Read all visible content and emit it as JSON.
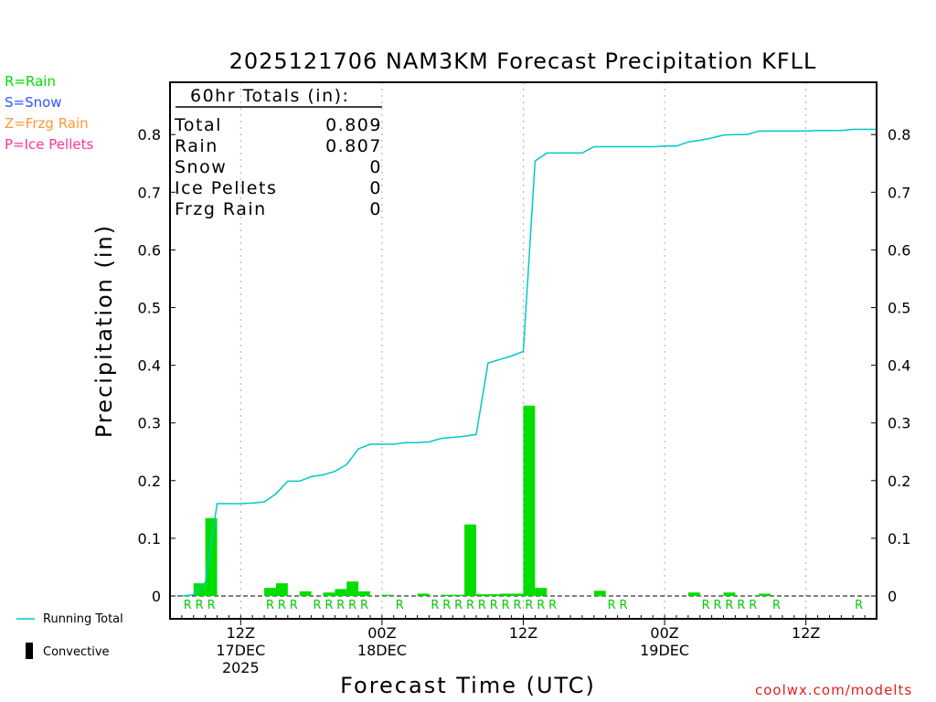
{
  "chart_data": {
    "type": "bar",
    "title": "2025121706 NAM3KM Forecast Precipitation KFLL",
    "xlabel": "Forecast Time (UTC)",
    "ylabel": "Precipitation (in)",
    "ylim": [
      0,
      0.9
    ],
    "yticks": [
      0,
      0.1,
      0.2,
      0.3,
      0.4,
      0.5,
      0.6,
      0.7,
      0.8
    ],
    "x_unit": "forecast hour",
    "xlim": [
      0,
      60
    ],
    "x_ticks": [
      {
        "hour": 6,
        "label": "12Z",
        "sub1": "17DEC",
        "sub2": "2025"
      },
      {
        "hour": 18,
        "label": "00Z",
        "sub1": "18DEC",
        "sub2": ""
      },
      {
        "hour": 30,
        "label": "12Z",
        "sub1": "",
        "sub2": ""
      },
      {
        "hour": 42,
        "label": "00Z",
        "sub1": "19DEC",
        "sub2": ""
      },
      {
        "hour": 54,
        "label": "12Z",
        "sub1": "",
        "sub2": ""
      }
    ],
    "totals": {
      "header": "60hr Totals (in):",
      "rows": [
        {
          "label": "Total",
          "value": "0.809"
        },
        {
          "label": "Rain",
          "value": "0.807"
        },
        {
          "label": "Snow",
          "value": "0"
        },
        {
          "label": "Ice Pellets",
          "value": "0"
        },
        {
          "label": "Frzg Rain",
          "value": "0"
        }
      ]
    },
    "series": [
      {
        "name": "Hourly Precipitation",
        "color": "#00dd00",
        "hours": [
          2,
          3,
          4,
          5,
          6,
          7,
          8,
          9,
          10,
          11,
          12,
          13,
          14,
          15,
          16,
          17,
          18,
          19,
          20,
          21,
          22,
          23,
          24,
          25,
          26,
          27,
          28,
          29,
          30,
          31,
          32,
          33,
          34,
          35,
          36,
          37,
          38,
          39,
          40,
          41,
          42,
          43,
          44,
          45,
          46,
          47,
          48,
          49,
          50,
          51,
          52,
          53,
          54,
          55,
          56,
          57,
          58,
          59,
          60
        ],
        "values": [
          0,
          0.022,
          0.135,
          0,
          0,
          0,
          0,
          0.014,
          0.022,
          0,
          0.008,
          0,
          0.006,
          0.012,
          0.025,
          0.008,
          0,
          0.002,
          0,
          0,
          0.004,
          0,
          0.002,
          0.002,
          0.124,
          0.003,
          0.003,
          0.004,
          0.004,
          0.33,
          0.014,
          0,
          0,
          0,
          0,
          0.009,
          0,
          0,
          0,
          0,
          0,
          0,
          0,
          0.006,
          0,
          0,
          0.006,
          0,
          0,
          0.004,
          0,
          0,
          0,
          0,
          0,
          0,
          0,
          0,
          0
        ]
      },
      {
        "name": "Running Total",
        "color": "#00c8c8",
        "hours": [
          1,
          2,
          3,
          4,
          5,
          6,
          7,
          8,
          9,
          10,
          11,
          12,
          13,
          14,
          15,
          16,
          17,
          18,
          19,
          20,
          21,
          22,
          23,
          24,
          25,
          26,
          27,
          28,
          29,
          30,
          31,
          32,
          33,
          34,
          35,
          36,
          37,
          38,
          39,
          40,
          41,
          42,
          43,
          44,
          45,
          46,
          47,
          48,
          49,
          50,
          51,
          52,
          53,
          54,
          55,
          56,
          57,
          58,
          59,
          60
        ],
        "values": [
          0,
          0.002,
          0.024,
          0.16,
          0.16,
          0.16,
          0.161,
          0.163,
          0.177,
          0.199,
          0.199,
          0.207,
          0.21,
          0.216,
          0.228,
          0.255,
          0.263,
          0.263,
          0.263,
          0.266,
          0.266,
          0.267,
          0.273,
          0.275,
          0.277,
          0.28,
          0.404,
          0.41,
          0.416,
          0.424,
          0.754,
          0.768,
          0.768,
          0.768,
          0.768,
          0.779,
          0.779,
          0.779,
          0.779,
          0.779,
          0.779,
          0.78,
          0.78,
          0.787,
          0.79,
          0.794,
          0.799,
          0.8,
          0.8,
          0.806,
          0.806,
          0.806,
          0.806,
          0.806,
          0.807,
          0.807,
          0.807,
          0.809,
          0.809,
          0.809
        ]
      }
    ],
    "precip_type_labels": [
      {
        "hour": 2,
        "type": "R"
      },
      {
        "hour": 3,
        "type": "R"
      },
      {
        "hour": 4,
        "type": "R"
      },
      {
        "hour": 9,
        "type": "R"
      },
      {
        "hour": 10,
        "type": "R"
      },
      {
        "hour": 11,
        "type": "R"
      },
      {
        "hour": 13,
        "type": "R"
      },
      {
        "hour": 14,
        "type": "R"
      },
      {
        "hour": 15,
        "type": "R"
      },
      {
        "hour": 16,
        "type": "R"
      },
      {
        "hour": 17,
        "type": "R"
      },
      {
        "hour": 20,
        "type": "R"
      },
      {
        "hour": 23,
        "type": "R"
      },
      {
        "hour": 24,
        "type": "R"
      },
      {
        "hour": 25,
        "type": "R"
      },
      {
        "hour": 26,
        "type": "R"
      },
      {
        "hour": 27,
        "type": "R"
      },
      {
        "hour": 28,
        "type": "R"
      },
      {
        "hour": 29,
        "type": "R"
      },
      {
        "hour": 30,
        "type": "R"
      },
      {
        "hour": 31,
        "type": "R"
      },
      {
        "hour": 32,
        "type": "R"
      },
      {
        "hour": 33,
        "type": "R"
      },
      {
        "hour": 38,
        "type": "R"
      },
      {
        "hour": 39,
        "type": "R"
      },
      {
        "hour": 46,
        "type": "R"
      },
      {
        "hour": 47,
        "type": "R"
      },
      {
        "hour": 48,
        "type": "R"
      },
      {
        "hour": 49,
        "type": "R"
      },
      {
        "hour": 50,
        "type": "R"
      },
      {
        "hour": 52,
        "type": "R"
      },
      {
        "hour": 59,
        "type": "R"
      }
    ]
  },
  "legend": {
    "types": [
      {
        "text": "R=Rain",
        "color": "#00dd00"
      },
      {
        "text": "S=Snow",
        "color": "#3355ff"
      },
      {
        "text": "Z=Frzg Rain",
        "color": "#ff9933"
      },
      {
        "text": "P=Ice Pellets",
        "color": "#ff3399"
      }
    ],
    "running_total_label": "Running Total",
    "convective_label": "Convective"
  },
  "credit": "coolwx.com/modelts"
}
